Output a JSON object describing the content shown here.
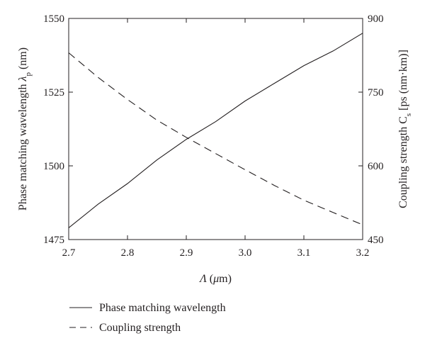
{
  "chart_data": {
    "type": "line",
    "xlabel_main": "Λ",
    "xlabel_unit_open": " (",
    "xlabel_mu": "μ",
    "xlabel_unit_rest": "m)",
    "ylabel_left_main": "Phase matching wavelength ",
    "ylabel_left_lambda": "λ",
    "ylabel_left_sub": "p",
    "ylabel_left_unit": " (nm)",
    "ylabel_right_main": "Coupling strength C",
    "ylabel_right_sub": "s",
    "ylabel_right_unit": " [ps (nm·km)]",
    "xlim": [
      2.7,
      3.2
    ],
    "ylim_left": [
      1475,
      1550
    ],
    "ylim_right": [
      450,
      900
    ],
    "x_ticks": [
      "2.7",
      "2.8",
      "2.9",
      "3.0",
      "3.1",
      "3.2"
    ],
    "y_left_ticks": [
      "1475",
      "1500",
      "1525",
      "1550"
    ],
    "y_right_ticks": [
      "450",
      "600",
      "750",
      "900"
    ],
    "grid": false,
    "legend_position": "bottom-left, below plot",
    "series": [
      {
        "name": "Phase matching wavelength",
        "axis": "left",
        "style": "solid",
        "x": [
          2.7,
          2.75,
          2.8,
          2.85,
          2.9,
          2.95,
          3.0,
          3.05,
          3.1,
          3.15,
          3.2
        ],
        "values": [
          1479,
          1487,
          1494,
          1502,
          1509,
          1515,
          1522,
          1528,
          1534,
          1539,
          1545
        ]
      },
      {
        "name": "Coupling strength",
        "axis": "right",
        "style": "dashed",
        "x": [
          2.7,
          2.75,
          2.8,
          2.85,
          2.9,
          2.95,
          3.0,
          3.05,
          3.1,
          3.15,
          3.2
        ],
        "values": [
          830,
          780,
          735,
          693,
          658,
          625,
          592,
          560,
          530,
          505,
          480
        ]
      }
    ],
    "colors": {
      "line": "#231f20",
      "axis": "#231f20"
    }
  }
}
